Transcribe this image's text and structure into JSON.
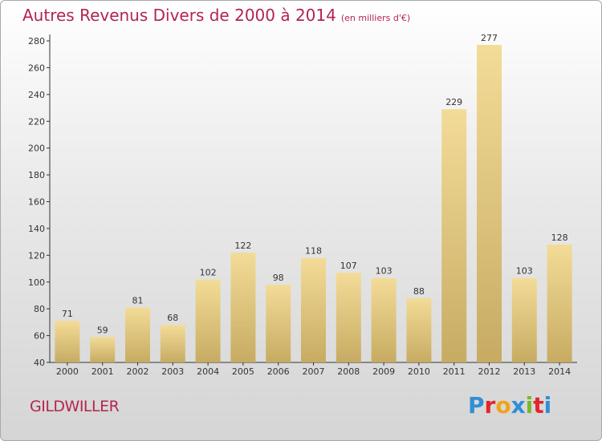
{
  "header": {
    "title": "Autres Revenus Divers de 2000 à 2014",
    "unit": "(en milliers d'€)"
  },
  "footer": {
    "commune": "GILDWILLER",
    "brand": "Proxiti"
  },
  "colors": {
    "title": "#b3254f",
    "bar_light": "#f3dc98",
    "bar_dark": "#c7ab62",
    "logo": [
      "#2f8fd6",
      "#e1262b",
      "#f2a31a",
      "#2f8fd6",
      "#78b829",
      "#e1262b",
      "#2f8fd6"
    ]
  },
  "chart_data": {
    "type": "bar",
    "title": "Autres Revenus Divers de 2000 à 2014",
    "xlabel": "",
    "ylabel": "",
    "categories": [
      "2000",
      "2001",
      "2002",
      "2003",
      "2004",
      "2005",
      "2006",
      "2007",
      "2008",
      "2009",
      "2010",
      "2011",
      "2012",
      "2013",
      "2014"
    ],
    "values": [
      71,
      59,
      81,
      68,
      102,
      122,
      98,
      118,
      107,
      103,
      88,
      229,
      277,
      103,
      128
    ],
    "ylim": [
      40,
      280
    ],
    "yticks": [
      40,
      60,
      80,
      100,
      120,
      140,
      160,
      180,
      200,
      220,
      240,
      260,
      280
    ],
    "grid": false,
    "legend": "none"
  }
}
